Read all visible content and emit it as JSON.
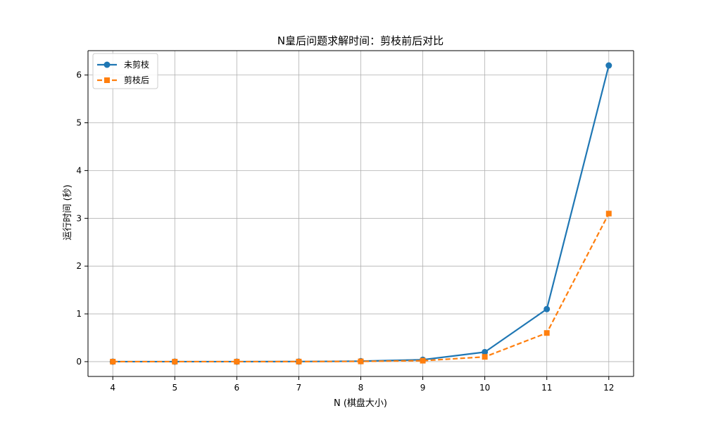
{
  "colors": {
    "series_0": "#1f77b4",
    "series_1": "#ff7f0e",
    "grid": "#b0b0b0",
    "axes": "#000000",
    "legend_border": "#cccccc"
  },
  "chart_data": {
    "type": "line",
    "title": "N皇后问题求解时间：剪枝前后对比",
    "xlabel": "N (棋盘大小)",
    "ylabel": "运行时间 (秒)",
    "xlim": [
      3.6,
      12.4
    ],
    "ylim": [
      -0.31,
      6.51
    ],
    "grid": true,
    "legend_position": "top-left",
    "x_ticks": [
      4,
      5,
      6,
      7,
      8,
      9,
      10,
      11,
      12
    ],
    "x_tick_labels": [
      "4",
      "5",
      "6",
      "7",
      "8",
      "9",
      "10",
      "11",
      "12"
    ],
    "y_ticks": [
      0,
      1,
      2,
      3,
      4,
      5,
      6
    ],
    "y_tick_labels": [
      "0",
      "1",
      "2",
      "3",
      "4",
      "5",
      "6"
    ],
    "x": [
      4,
      5,
      6,
      7,
      8,
      9,
      10,
      11,
      12
    ],
    "series": [
      {
        "name": "未剪枝",
        "values": [
          0.0,
          0.0,
          0.0,
          0.002,
          0.01,
          0.04,
          0.2,
          1.1,
          6.2
        ],
        "line_style": "solid",
        "marker": "circle"
      },
      {
        "name": "剪枝后",
        "values": [
          0.0,
          0.0,
          0.0,
          0.001,
          0.005,
          0.02,
          0.1,
          0.6,
          3.1
        ],
        "line_style": "dashed",
        "marker": "square"
      }
    ]
  }
}
